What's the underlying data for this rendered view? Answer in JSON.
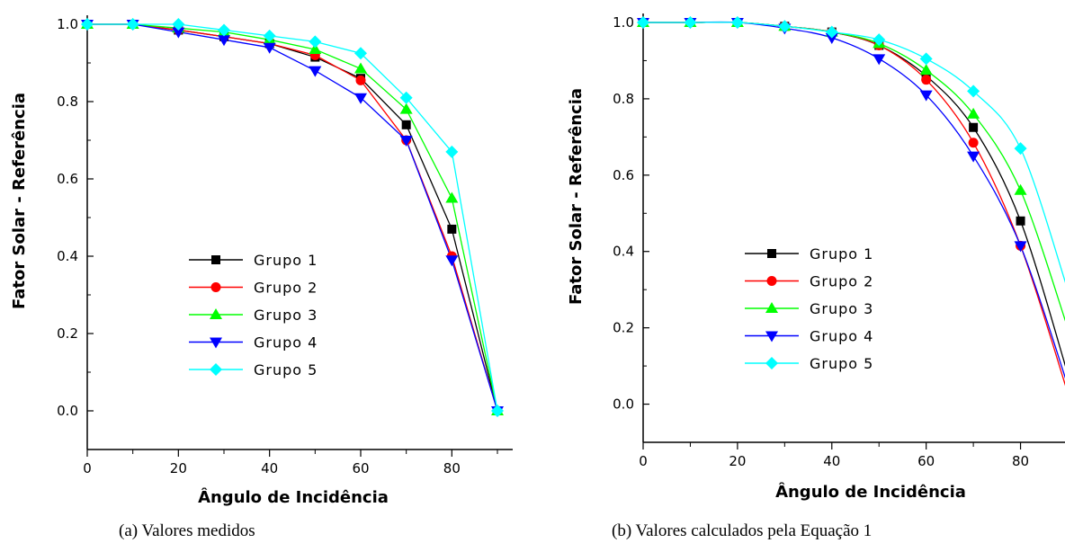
{
  "chart_data": [
    {
      "type": "line",
      "caption": "(a) Valores medidos",
      "xlabel": "Ângulo de Incidência",
      "ylabel": "Fator Solar - Referência",
      "xlim": [
        0,
        90
      ],
      "ylim": [
        -0.1,
        1.0
      ],
      "xticks": [
        "0",
        "20",
        "40",
        "60",
        "80"
      ],
      "yticks": [
        "0.0",
        "0.2",
        "0.4",
        "0.6",
        "0.8",
        "1.0"
      ],
      "legend_position": "center-left",
      "x": [
        0,
        10,
        20,
        30,
        40,
        50,
        60,
        70,
        80,
        90
      ],
      "series": [
        {
          "name": "Grupo 1",
          "color": "#000000",
          "marker": "square",
          "values": [
            1.0,
            1.0,
            0.985,
            0.968,
            0.95,
            0.915,
            0.86,
            0.74,
            0.47,
            0.0
          ]
        },
        {
          "name": "Grupo 2",
          "color": "#ff0000",
          "marker": "circle",
          "values": [
            1.0,
            1.0,
            0.985,
            0.968,
            0.95,
            0.92,
            0.855,
            0.7,
            0.4,
            0.0
          ]
        },
        {
          "name": "Grupo 3",
          "color": "#00ff00",
          "marker": "triangle-up",
          "values": [
            1.0,
            1.0,
            0.99,
            0.98,
            0.96,
            0.935,
            0.885,
            0.78,
            0.55,
            0.0
          ]
        },
        {
          "name": "Grupo 4",
          "color": "#0000ff",
          "marker": "triangle-down",
          "values": [
            1.0,
            1.0,
            0.98,
            0.96,
            0.94,
            0.88,
            0.81,
            0.7,
            0.39,
            0.0
          ]
        },
        {
          "name": "Grupo 5",
          "color": "#00ffff",
          "marker": "diamond",
          "values": [
            1.0,
            1.0,
            1.0,
            0.985,
            0.97,
            0.955,
            0.925,
            0.81,
            0.67,
            0.0
          ]
        }
      ]
    },
    {
      "type": "line",
      "caption": "(b) Valores calculados pela Equação 1",
      "xlabel": "Ângulo de Incidência",
      "ylabel": "Fator Solar - Referência",
      "xlim": [
        0,
        90
      ],
      "ylim": [
        -0.1,
        1.0
      ],
      "xticks": [
        "0",
        "20",
        "40",
        "60",
        "80"
      ],
      "yticks": [
        "0.0",
        "0.2",
        "0.4",
        "0.6",
        "0.8",
        "1.0"
      ],
      "legend_position": "center-left",
      "x": [
        0,
        10,
        20,
        30,
        40,
        50,
        60,
        70,
        80
      ],
      "series": [
        {
          "name": "Grupo 1",
          "color": "#000000",
          "marker": "square",
          "values": [
            1.0,
            1.0,
            1.0,
            0.99,
            0.975,
            0.94,
            0.86,
            0.725,
            0.48
          ],
          "curve_end": [
            90,
            0.08
          ]
        },
        {
          "name": "Grupo 2",
          "color": "#ff0000",
          "marker": "circle",
          "values": [
            1.0,
            1.0,
            1.0,
            0.99,
            0.975,
            0.94,
            0.85,
            0.685,
            0.415
          ],
          "curve_end": [
            90,
            0.03
          ]
        },
        {
          "name": "Grupo 3",
          "color": "#00ff00",
          "marker": "triangle-up",
          "values": [
            1.0,
            1.0,
            1.0,
            0.99,
            0.975,
            0.945,
            0.875,
            0.76,
            0.56
          ],
          "curve_end": [
            90,
            0.2
          ]
        },
        {
          "name": "Grupo 4",
          "color": "#0000ff",
          "marker": "triangle-down",
          "values": [
            1.0,
            1.0,
            1.0,
            0.985,
            0.96,
            0.905,
            0.81,
            0.65,
            0.415
          ],
          "curve_end": [
            90,
            0.05
          ]
        },
        {
          "name": "Grupo 5",
          "color": "#00ffff",
          "marker": "diamond",
          "values": [
            1.0,
            1.0,
            1.0,
            0.99,
            0.975,
            0.955,
            0.905,
            0.82,
            0.67
          ],
          "curve_end": [
            90,
            0.3
          ]
        }
      ]
    }
  ]
}
